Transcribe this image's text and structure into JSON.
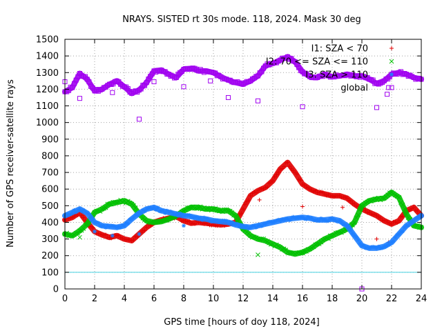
{
  "chart_data": {
    "type": "scatter",
    "title": "NRAYS. SISTED rt 30s mode. 118, 2024. Mask 30 deg",
    "xlabel": "GPS time [hours of doy 118, 2024]",
    "ylabel": "Number of GPS receiver-satellite rays",
    "xlim": [
      0,
      24
    ],
    "ylim": [
      0,
      1500
    ],
    "xticks": [
      0,
      2,
      4,
      6,
      8,
      10,
      12,
      14,
      16,
      18,
      20,
      22,
      24
    ],
    "yticks": [
      0,
      100,
      200,
      300,
      400,
      500,
      600,
      700,
      800,
      900,
      1000,
      1100,
      1200,
      1300,
      1400,
      1500
    ],
    "grid": true,
    "legend_position": "top-right",
    "reference_line": {
      "y": 100,
      "color": "#40d0e0"
    },
    "series": [
      {
        "name": "I1: SZA < 70",
        "marker": "+",
        "color": "#e00000",
        "x": [
          0,
          0.5,
          1,
          1.5,
          2,
          2.5,
          3,
          3.5,
          4,
          4.5,
          5,
          5.5,
          6,
          6.5,
          7,
          7.5,
          8,
          8.5,
          9,
          9.5,
          10,
          10.5,
          11,
          11.5,
          12,
          12.5,
          13,
          13.5,
          14,
          14.5,
          15,
          15.5,
          16,
          16.5,
          17,
          17.5,
          18,
          18.5,
          19,
          19.5,
          20,
          20.5,
          21,
          21.5,
          22,
          22.5,
          23,
          23.5,
          24
        ],
        "y": [
          415,
          430,
          460,
          400,
          345,
          325,
          310,
          320,
          300,
          290,
          330,
          370,
          400,
          415,
          425,
          435,
          410,
          395,
          400,
          395,
          390,
          385,
          390,
          400,
          480,
          560,
          590,
          610,
          650,
          720,
          760,
          700,
          630,
          600,
          580,
          570,
          560,
          560,
          545,
          510,
          480,
          460,
          440,
          410,
          390,
          410,
          470,
          490,
          440
        ],
        "outliers_x": [
          5.0,
          13.1,
          16.0,
          18.7,
          21.0,
          21.8
        ],
        "outliers_y": [
          330,
          535,
          495,
          490,
          300,
          280
        ]
      },
      {
        "name": "I2: 70 <= SZA <= 110",
        "marker": "x",
        "color": "#00c000",
        "x": [
          0,
          0.5,
          1,
          1.5,
          2,
          2.5,
          3,
          3.5,
          4,
          4.5,
          5,
          5.5,
          6,
          6.5,
          7,
          7.5,
          8,
          8.5,
          9,
          9.5,
          10,
          10.5,
          11,
          11.5,
          12,
          12.5,
          13,
          13.5,
          14,
          14.5,
          15,
          15.5,
          16,
          16.5,
          17,
          17.5,
          18,
          18.5,
          19,
          19.5,
          20,
          20.5,
          21,
          21.5,
          22,
          22.5,
          23,
          23.5,
          24
        ],
        "y": [
          330,
          320,
          350,
          390,
          460,
          480,
          510,
          520,
          530,
          510,
          450,
          410,
          400,
          405,
          420,
          440,
          470,
          490,
          490,
          480,
          480,
          470,
          470,
          440,
          360,
          320,
          300,
          290,
          270,
          250,
          220,
          210,
          220,
          240,
          270,
          300,
          320,
          340,
          360,
          400,
          500,
          530,
          540,
          545,
          580,
          550,
          450,
          380,
          370
        ],
        "outliers_x": [
          1.0,
          13.0,
          16.0
        ],
        "outliers_y": [
          310,
          205,
          215
        ]
      },
      {
        "name": "I3: SZA > 110",
        "marker": "*",
        "color": "#1f7fff",
        "x": [
          0,
          0.5,
          1,
          1.5,
          2,
          2.5,
          3,
          3.5,
          4,
          4.5,
          5,
          5.5,
          6,
          6.5,
          7,
          7.5,
          8,
          8.5,
          9,
          9.5,
          10,
          10.5,
          11,
          11.5,
          12,
          12.5,
          13,
          13.5,
          14,
          14.5,
          15,
          15.5,
          16,
          16.5,
          17,
          17.5,
          18,
          18.5,
          19,
          19.5,
          20,
          20.5,
          21,
          21.5,
          22,
          22.5,
          23,
          23.5,
          24
        ],
        "y": [
          440,
          460,
          480,
          455,
          400,
          380,
          375,
          370,
          380,
          420,
          455,
          480,
          490,
          470,
          460,
          450,
          440,
          435,
          425,
          420,
          410,
          405,
          400,
          385,
          375,
          370,
          380,
          390,
          400,
          410,
          420,
          425,
          430,
          425,
          415,
          415,
          420,
          410,
          380,
          320,
          260,
          245,
          245,
          255,
          280,
          330,
          380,
          410,
          440
        ],
        "outliers_x": [
          2.0,
          3.2,
          5.0,
          8.0
        ],
        "outliers_y": [
          345,
          320,
          330,
          380
        ]
      },
      {
        "name": "global",
        "marker": "square",
        "color": "#a000f0",
        "x": [
          0,
          0.5,
          1,
          1.5,
          2,
          2.5,
          3,
          3.5,
          4,
          4.5,
          5,
          5.5,
          6,
          6.5,
          7,
          7.5,
          8,
          8.5,
          9,
          9.5,
          10,
          10.5,
          11,
          11.5,
          12,
          12.5,
          13,
          13.5,
          14,
          14.5,
          15,
          15.5,
          16,
          16.5,
          17,
          17.5,
          18,
          18.5,
          19,
          19.5,
          20,
          20.5,
          21,
          21.5,
          22,
          22.5,
          23,
          23.5,
          24
        ],
        "y": [
          1185,
          1210,
          1295,
          1260,
          1190,
          1200,
          1230,
          1250,
          1215,
          1175,
          1195,
          1240,
          1310,
          1315,
          1290,
          1270,
          1320,
          1325,
          1310,
          1310,
          1300,
          1275,
          1255,
          1240,
          1230,
          1250,
          1280,
          1340,
          1355,
          1375,
          1395,
          1365,
          1305,
          1275,
          1270,
          1290,
          1275,
          1280,
          1290,
          1280,
          1280,
          1260,
          1235,
          1250,
          1290,
          1300,
          1290,
          1270,
          1260
        ],
        "outliers_x": [
          0,
          1.0,
          3.2,
          5.0,
          6.0,
          8.0,
          9.8,
          11.0,
          13.0,
          16.0,
          21.0,
          21.7,
          21.8,
          20.0
        ],
        "outliers_y": [
          1245,
          1145,
          1180,
          1020,
          1245,
          1215,
          1250,
          1150,
          1130,
          1095,
          1090,
          1170,
          1210,
          0
        ]
      }
    ]
  }
}
